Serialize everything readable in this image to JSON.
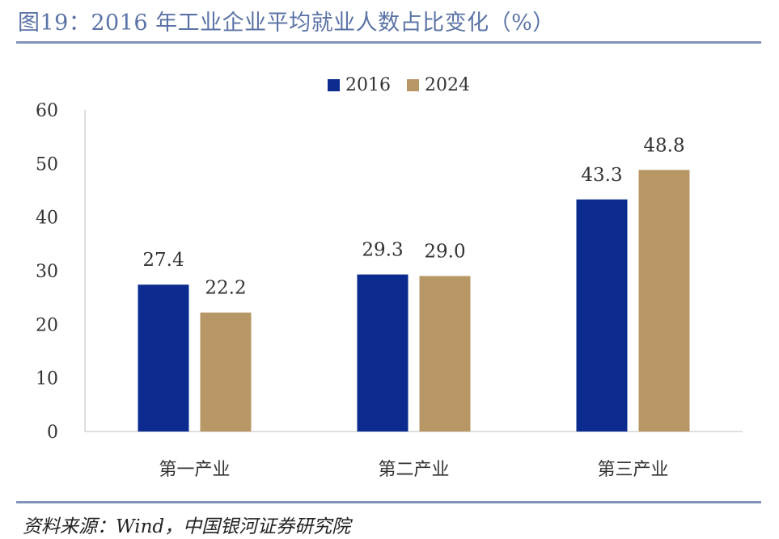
{
  "header": {
    "title": "图19：2016 年工业企业平均就业人数占比变化（%）"
  },
  "footer": {
    "source": "资料来源：Wind，中国银河证券研究院"
  },
  "colors": {
    "series_2016": "#0b2b8f",
    "series_2024": "#b89766",
    "rule": "#8193b8"
  },
  "chart_data": {
    "type": "bar",
    "categories": [
      "第一产业",
      "第二产业",
      "第三产业"
    ],
    "series": [
      {
        "name": "2016",
        "values": [
          27.4,
          29.3,
          43.3
        ]
      },
      {
        "name": "2024",
        "values": [
          22.2,
          29.0,
          48.8
        ]
      }
    ],
    "yticks": [
      "0",
      "10",
      "20",
      "30",
      "40",
      "50",
      "60"
    ],
    "ylim": [
      0,
      60
    ],
    "grid": false,
    "legend_position": "top-center"
  }
}
